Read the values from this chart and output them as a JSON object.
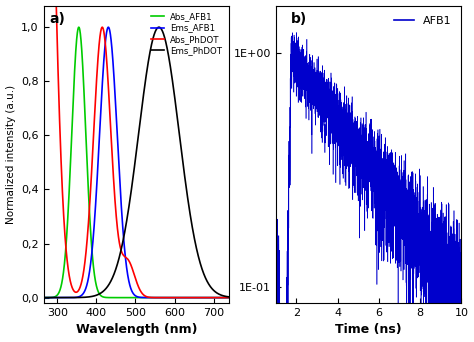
{
  "panel_a": {
    "title": "a)",
    "xlabel": "Wavelength (nm)",
    "ylabel": "Normalized intensity (a.u.)",
    "xlim": [
      265,
      740
    ],
    "ylim": [
      -0.02,
      1.08
    ],
    "yticks": [
      0.0,
      0.2,
      0.4,
      0.6,
      0.8,
      1.0
    ],
    "ytick_labels": [
      "0,0",
      "0,2",
      "0,4",
      "0,6",
      "0,8",
      "1,0"
    ],
    "xticks": [
      300,
      400,
      500,
      600,
      700
    ],
    "legend_labels": [
      "Abs_AFB1",
      "Ems_AFB1",
      "Abs_PhDOT",
      "Ems_PhDOT"
    ],
    "legend_colors": [
      "#00cc00",
      "#0000ff",
      "#ff0000",
      "#000000"
    ]
  },
  "panel_b": {
    "title": "b)",
    "xlabel": "Time (ns)",
    "xlim": [
      1,
      10
    ],
    "ylim_log": [
      0.085,
      1.6
    ],
    "xticks": [
      2,
      4,
      6,
      8,
      10
    ],
    "legend_label": "AFB1",
    "line_color": "#0000cc",
    "decay_tau": 3.5,
    "noise_amp": 0.12,
    "peak_time": 1.75
  },
  "background_color": "#ffffff",
  "figure_facecolor": "#ffffff"
}
